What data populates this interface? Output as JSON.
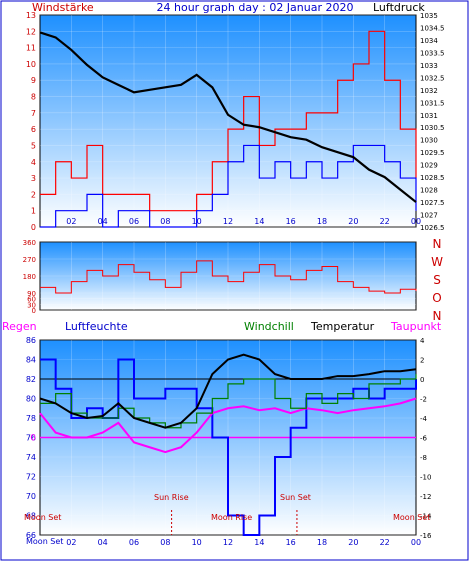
{
  "header": {
    "left_label": "Windstärke",
    "title": "24 hour graph day : 02 Januar 2020",
    "right_label": "Luftdruck"
  },
  "legend": {
    "regen": "Regen",
    "luftfeuchte": "Luftfeuchte",
    "windchill": "Windchill",
    "temperatur": "Temperatur",
    "taupunkt": "Taupunkt"
  },
  "compass": [
    "N",
    "W",
    "S",
    "O",
    "N"
  ],
  "astro": {
    "moon_set_left": "Moon Set",
    "sun_rise": "Sun Rise",
    "moon_rise": "Moon Rise",
    "sun_set": "Sun Set",
    "moon_set_right": "Moon Set",
    "moon_set_axis": "Moon Set"
  },
  "colors": {
    "wind": "#ff0000",
    "gust": "#0000ff",
    "pressure": "#000000",
    "temperature": "#000000",
    "windchill": "#008000",
    "dewpoint": "#ff00ff",
    "humidity": "#0000ff"
  },
  "chart_data": [
    {
      "type": "line",
      "name": "wind-pressure",
      "x_ticks": [
        "02",
        "04",
        "06",
        "08",
        "10",
        "12",
        "14",
        "16",
        "18",
        "20",
        "22",
        "00"
      ],
      "x_range_hours": [
        0,
        24
      ],
      "y_left": {
        "label": "Windstärke",
        "range": [
          0,
          13
        ],
        "ticks": [
          "0",
          "1",
          "2",
          "3",
          "4",
          "5",
          "6",
          "7",
          "8",
          "9",
          "10",
          "11",
          "12",
          "13"
        ]
      },
      "y_right": {
        "label": "Luftdruck",
        "range": [
          1026.5,
          1035
        ],
        "ticks": [
          "1026.5",
          "1027",
          "1027.5",
          "1028",
          "1028.5",
          "1029",
          "1029.5",
          "1030",
          "1030.5",
          "1031",
          "1031.5",
          "1032",
          "1032.5",
          "1033",
          "1033.5",
          "1034",
          "1034.5",
          "1035"
        ]
      },
      "pressure": {
        "x": [
          0,
          1,
          2,
          3,
          4,
          5,
          6,
          7,
          8,
          9,
          10,
          11,
          12,
          13,
          14,
          15,
          16,
          17,
          18,
          19,
          20,
          21,
          22,
          23,
          24
        ],
        "y": [
          1034.3,
          1034.1,
          1033.6,
          1033.0,
          1032.5,
          1032.2,
          1031.9,
          1032.0,
          1032.1,
          1032.2,
          1032.6,
          1032.1,
          1031.0,
          1030.6,
          1030.5,
          1030.3,
          1030.1,
          1030.0,
          1029.7,
          1029.5,
          1029.3,
          1028.8,
          1028.5,
          1028.0,
          1027.5
        ]
      },
      "wind_avg": {
        "x": [
          0,
          1,
          2,
          3,
          4,
          5,
          6,
          7,
          8,
          9,
          10,
          11,
          12,
          13,
          14,
          15,
          16,
          17,
          18,
          19,
          20,
          21,
          22,
          23,
          24
        ],
        "y": [
          2,
          4,
          3,
          5,
          2,
          2,
          2,
          1,
          1,
          1,
          2,
          4,
          6,
          8,
          5,
          6,
          6,
          7,
          7,
          9,
          10,
          12,
          9,
          6,
          3
        ]
      },
      "wind_gust": {
        "x": [
          0,
          1,
          2,
          3,
          4,
          5,
          6,
          7,
          8,
          9,
          10,
          11,
          12,
          13,
          14,
          15,
          16,
          17,
          18,
          19,
          20,
          21,
          22,
          23,
          24
        ],
        "y": [
          0,
          1,
          1,
          2,
          0,
          1,
          1,
          0,
          0,
          0,
          1,
          2,
          4,
          5,
          3,
          4,
          3,
          4,
          3,
          4,
          5,
          5,
          4,
          3,
          1
        ]
      }
    },
    {
      "type": "line",
      "name": "wind-direction",
      "y_range": [
        0,
        360
      ],
      "y_ticks": [
        "0",
        "30",
        "60",
        "90",
        "180",
        "270",
        "360"
      ],
      "x_ticks": [],
      "direction": {
        "x": [
          0,
          1,
          2,
          3,
          4,
          5,
          6,
          7,
          8,
          9,
          10,
          11,
          12,
          13,
          14,
          15,
          16,
          17,
          18,
          19,
          20,
          21,
          22,
          23,
          24
        ],
        "y": [
          120,
          90,
          150,
          210,
          180,
          240,
          200,
          160,
          120,
          200,
          260,
          180,
          150,
          200,
          240,
          180,
          160,
          210,
          230,
          150,
          120,
          100,
          90,
          110,
          100
        ]
      }
    },
    {
      "type": "line",
      "name": "temperature-humidity",
      "x_ticks": [
        "02",
        "04",
        "06",
        "08",
        "10",
        "12",
        "14",
        "16",
        "18",
        "20",
        "22",
        "00"
      ],
      "y_left": {
        "range": [
          66,
          86
        ],
        "ticks": [
          "66",
          "68",
          "70",
          "72",
          "74",
          "76",
          "78",
          "80",
          "82",
          "84",
          "86"
        ]
      },
      "y_right": {
        "range": [
          -16,
          4
        ],
        "ticks": [
          "-16",
          "-14",
          "-12",
          "-10",
          "-8",
          "-6",
          "-4",
          "-2",
          "0",
          "2",
          "4"
        ]
      },
      "rain_zero_label": "0",
      "series": [
        {
          "name": "Temperatur",
          "x": [
            0,
            1,
            2,
            3,
            4,
            5,
            6,
            7,
            8,
            9,
            10,
            11,
            12,
            13,
            14,
            15,
            16,
            17,
            18,
            19,
            20,
            21,
            22,
            23,
            24
          ],
          "y": [
            -2.0,
            -2.5,
            -3.5,
            -4.0,
            -3.8,
            -2.5,
            -4.0,
            -4.5,
            -5.0,
            -4.5,
            -3.0,
            0.5,
            2.0,
            2.5,
            2.0,
            0.5,
            0.0,
            0.0,
            0.0,
            0.3,
            0.3,
            0.5,
            0.8,
            0.8,
            1.0
          ]
        },
        {
          "name": "Windchill",
          "x": [
            0,
            1,
            2,
            3,
            4,
            5,
            6,
            7,
            8,
            9,
            10,
            11,
            12,
            13,
            14,
            15,
            16,
            17,
            18,
            19,
            20,
            21,
            22,
            23,
            24
          ],
          "y": [
            -2.5,
            -1.5,
            -3.5,
            -4.0,
            -4.0,
            -3.0,
            -4.0,
            -4.5,
            -5.0,
            -4.5,
            -3.5,
            -2.0,
            -0.5,
            0.0,
            0.0,
            -2.0,
            -3.0,
            -1.5,
            -2.5,
            -1.5,
            -2.0,
            -0.5,
            -0.5,
            0.0,
            0.5
          ]
        },
        {
          "name": "Taupunkt",
          "x": [
            0,
            1,
            2,
            3,
            4,
            5,
            6,
            7,
            8,
            9,
            10,
            11,
            12,
            13,
            14,
            15,
            16,
            17,
            18,
            19,
            20,
            21,
            22,
            23,
            24
          ],
          "y": [
            -3.5,
            -5.5,
            -6.0,
            -6.0,
            -5.5,
            -4.5,
            -6.5,
            -7.0,
            -7.5,
            -7.0,
            -5.5,
            -3.5,
            -3.0,
            -2.8,
            -3.2,
            -3.0,
            -3.5,
            -3.0,
            -3.2,
            -3.5,
            -3.2,
            -3.0,
            -2.8,
            -2.5,
            -2.0
          ]
        },
        {
          "name": "Luftfeuchte",
          "x": [
            0,
            1,
            2,
            3,
            4,
            5,
            6,
            7,
            8,
            9,
            10,
            11,
            12,
            13,
            14,
            15,
            16,
            17,
            18,
            19,
            20,
            21,
            22,
            23,
            24
          ],
          "y": [
            84,
            81,
            78,
            79,
            78,
            84,
            80,
            80,
            81,
            81,
            79,
            76,
            68,
            66,
            68,
            74,
            77,
            80,
            80,
            80,
            81,
            80,
            81,
            81,
            82
          ]
        },
        {
          "name": "Regen",
          "x": [
            0,
            24
          ],
          "y": [
            0,
            0
          ]
        }
      ],
      "astro_hours": {
        "moon_set_left": 0,
        "sun_rise": 8.4,
        "moon_rise": 12.0,
        "sun_set": 16.4,
        "moon_set_right": 23.8
      }
    }
  ]
}
